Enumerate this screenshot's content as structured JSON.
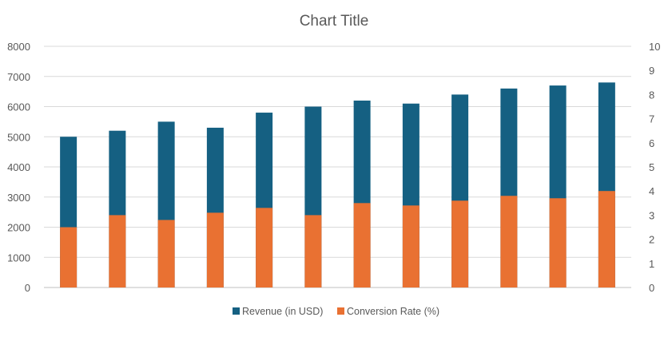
{
  "chart_data": {
    "type": "bar",
    "title": "Chart Title",
    "categories": [
      "",
      "",
      "",
      "",
      "",
      "",
      "",
      "",
      "",
      "",
      "",
      ""
    ],
    "series": [
      {
        "name": "Revenue (in USD)",
        "axis": "left",
        "color": "#156082",
        "values": [
          5000,
          5200,
          5500,
          5300,
          5800,
          6000,
          6200,
          6100,
          6400,
          6600,
          6700,
          6800
        ]
      },
      {
        "name": "Conversion Rate (%)",
        "axis": "right",
        "color": "#E97132",
        "values": [
          2.5,
          3.0,
          2.8,
          3.1,
          3.3,
          3.0,
          3.5,
          3.4,
          3.6,
          3.8,
          3.7,
          4.0
        ]
      }
    ],
    "y_left": {
      "min": 0,
      "max": 8000,
      "step": 1000,
      "ticks": [
        "0",
        "1000",
        "2000",
        "3000",
        "4000",
        "5000",
        "6000",
        "7000",
        "8000"
      ]
    },
    "y_right": {
      "min": 0,
      "max": 10,
      "step": 1,
      "ticks": [
        "0",
        "1",
        "2",
        "3",
        "4",
        "5",
        "6",
        "7",
        "8",
        "9",
        "10"
      ]
    },
    "grid": true,
    "legend_position": "bottom"
  }
}
